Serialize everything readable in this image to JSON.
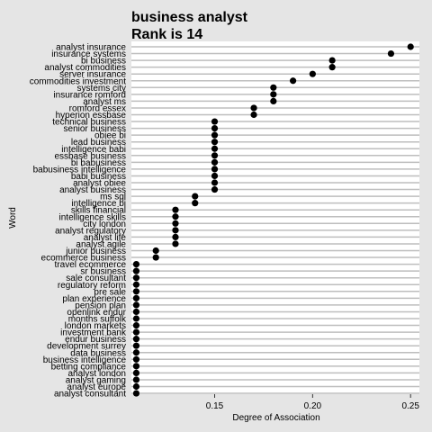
{
  "chart_data": {
    "type": "scatter",
    "title": "business analyst",
    "subtitle": "Rank is 14",
    "xlabel": "Degree of Association",
    "ylabel": "Word",
    "xlim": [
      0.1075,
      0.2545
    ],
    "xticks": [
      0.15,
      0.2,
      0.25
    ],
    "xtick_labels": [
      "0.15",
      "0.20",
      "0.25"
    ],
    "grid": "horizontal",
    "colors": {
      "background": "#e5e5e5",
      "panel": "#ffffff",
      "gridline": "#bebebe",
      "point": "#000000"
    },
    "points": [
      {
        "word": "analyst insurance",
        "value": 0.25
      },
      {
        "word": "insurance systems",
        "value": 0.24
      },
      {
        "word": "bi business",
        "value": 0.21
      },
      {
        "word": "analyst commodities",
        "value": 0.21
      },
      {
        "word": "server insurance",
        "value": 0.2
      },
      {
        "word": "commodities investment",
        "value": 0.19
      },
      {
        "word": "systems city",
        "value": 0.18
      },
      {
        "word": "insurance romford",
        "value": 0.18
      },
      {
        "word": "analyst ms",
        "value": 0.18
      },
      {
        "word": "romford essex",
        "value": 0.17
      },
      {
        "word": "hyperion essbase",
        "value": 0.17
      },
      {
        "word": "technical business",
        "value": 0.15
      },
      {
        "word": "senior business",
        "value": 0.15
      },
      {
        "word": "obiee bi",
        "value": 0.15
      },
      {
        "word": "lead business",
        "value": 0.15
      },
      {
        "word": "intelligence babi",
        "value": 0.15
      },
      {
        "word": "essbase business",
        "value": 0.15
      },
      {
        "word": "bi babusiness",
        "value": 0.15
      },
      {
        "word": "babusiness intelligence",
        "value": 0.15
      },
      {
        "word": "babi business",
        "value": 0.15
      },
      {
        "word": "analyst obiee",
        "value": 0.15
      },
      {
        "word": "analyst business",
        "value": 0.15
      },
      {
        "word": "ms sql",
        "value": 0.14
      },
      {
        "word": "intelligence bi",
        "value": 0.14
      },
      {
        "word": "skills financial",
        "value": 0.13
      },
      {
        "word": "intelligence skills",
        "value": 0.13
      },
      {
        "word": "city london",
        "value": 0.13
      },
      {
        "word": "analyst regulatory",
        "value": 0.13
      },
      {
        "word": "analyst life",
        "value": 0.13
      },
      {
        "word": "analyst agile",
        "value": 0.13
      },
      {
        "word": "junior business",
        "value": 0.12
      },
      {
        "word": "ecommerce business",
        "value": 0.12
      },
      {
        "word": "travel ecommerce",
        "value": 0.11
      },
      {
        "word": "sr business",
        "value": 0.11
      },
      {
        "word": "sale consultant",
        "value": 0.11
      },
      {
        "word": "regulatory reform",
        "value": 0.11
      },
      {
        "word": "pre sale",
        "value": 0.11
      },
      {
        "word": "plan experience",
        "value": 0.11
      },
      {
        "word": "pension plan",
        "value": 0.11
      },
      {
        "word": "openlink endur",
        "value": 0.11
      },
      {
        "word": "months suffolk",
        "value": 0.11
      },
      {
        "word": "london markets",
        "value": 0.11
      },
      {
        "word": "investment bank",
        "value": 0.11
      },
      {
        "word": "endur business",
        "value": 0.11
      },
      {
        "word": "development surrey",
        "value": 0.11
      },
      {
        "word": "data business",
        "value": 0.11
      },
      {
        "word": "business intelligence",
        "value": 0.11
      },
      {
        "word": "betting compliance",
        "value": 0.11
      },
      {
        "word": "analyst london",
        "value": 0.11
      },
      {
        "word": "analyst gaming",
        "value": 0.11
      },
      {
        "word": "analyst europe",
        "value": 0.11
      },
      {
        "word": "analyst consultant",
        "value": 0.11
      }
    ]
  }
}
